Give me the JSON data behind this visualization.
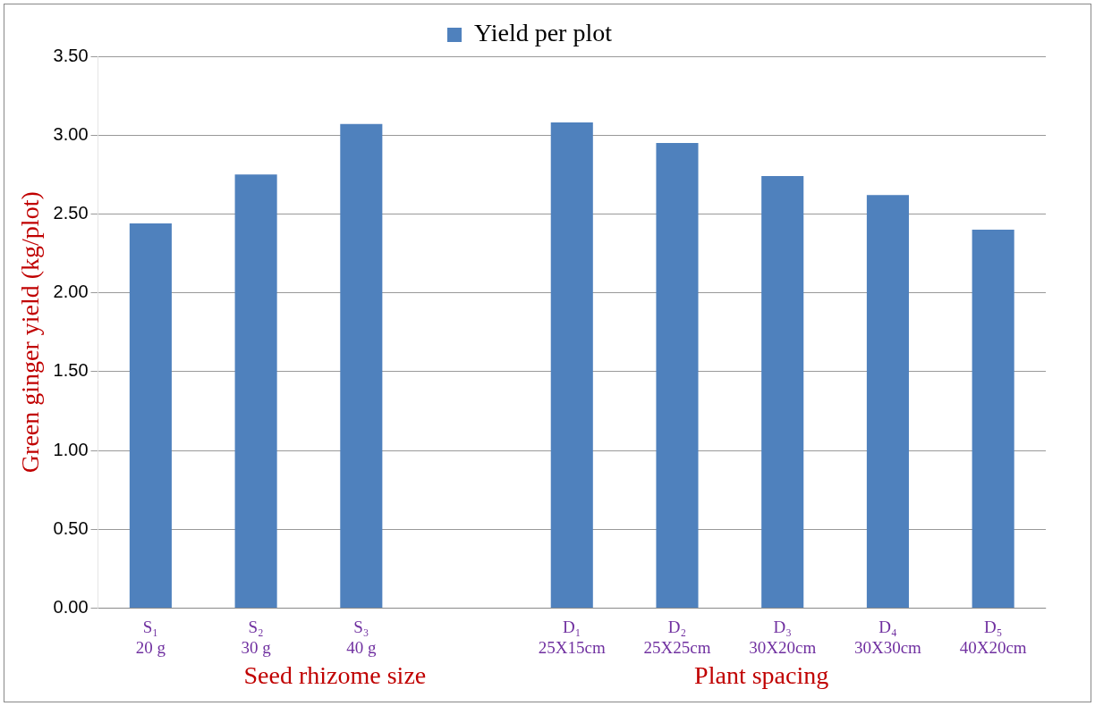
{
  "chart_data": {
    "type": "bar",
    "ylabel": "Green ginger yield (kg/plot)",
    "categories": [
      "S₁\n20 g",
      "S₂\n30 g",
      "S₃\n40 g",
      null,
      "D₁\n25X15cm",
      "D₂\n25X25cm",
      "D₃\n30X20cm",
      "D₄\n30X30cm",
      "D₅\n40X20cm"
    ],
    "series": [
      {
        "name": "Yield per plot",
        "color": "#4f81bd",
        "values": [
          2.44,
          2.75,
          3.07,
          null,
          3.08,
          2.95,
          2.74,
          2.62,
          2.4
        ]
      }
    ],
    "ylim": [
      0,
      3.5
    ],
    "yticks": [
      {
        "value": 0,
        "label": "0.00"
      },
      {
        "value": 0.5,
        "label": "0.50"
      },
      {
        "value": 1,
        "label": "1.00"
      },
      {
        "value": 1.5,
        "label": "1.50"
      },
      {
        "value": 2,
        "label": "2.00"
      },
      {
        "value": 2.5,
        "label": "2.50"
      },
      {
        "value": 3,
        "label": "3.00"
      },
      {
        "value": 3.5,
        "label": "3.50"
      }
    ],
    "annotations": [
      "Seed rhizome size",
      "Plant spacing"
    ],
    "grid": "y",
    "legend": "top"
  }
}
